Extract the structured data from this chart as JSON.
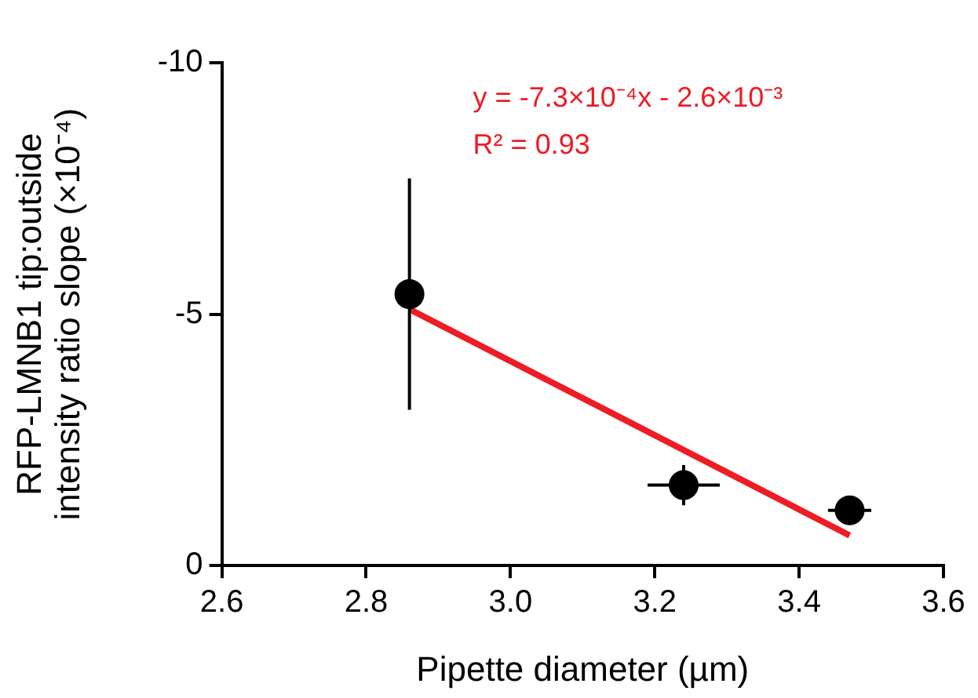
{
  "chart_data": {
    "type": "scatter",
    "xlabel": "Pipette diameter (µm)",
    "ylabel": "RFP-LMNB1 tip:outside\nintensity ratio slope (×10⁻⁴)",
    "xlim": [
      2.6,
      3.6
    ],
    "xticks": [
      2.6,
      2.8,
      {
        "value": 3.0,
        "label": "3.0"
      },
      3.2,
      3.4,
      3.6
    ],
    "ylim": [
      0,
      -10
    ],
    "yticks": [
      -10,
      -5,
      0
    ],
    "grid": false,
    "legend": false,
    "annotations": [
      "y = -7.3×10⁻⁴x - 2.6×10⁻³",
      "R² = 0.93"
    ],
    "series": [
      {
        "marker": "circle",
        "color": "#000000",
        "x": [
          2.86,
          3.24,
          3.47
        ],
        "values": [
          -5.4,
          -1.6,
          -1.1
        ],
        "errors": [
          2.3,
          0.4,
          null
        ],
        "xerrors": [
          null,
          0.05,
          0.03
        ]
      },
      {
        "type": "line",
        "marker": "none",
        "color": "#ee1c25",
        "x": [
          2.86,
          3.47
        ],
        "values": [
          -5.1,
          -0.6
        ]
      }
    ]
  }
}
